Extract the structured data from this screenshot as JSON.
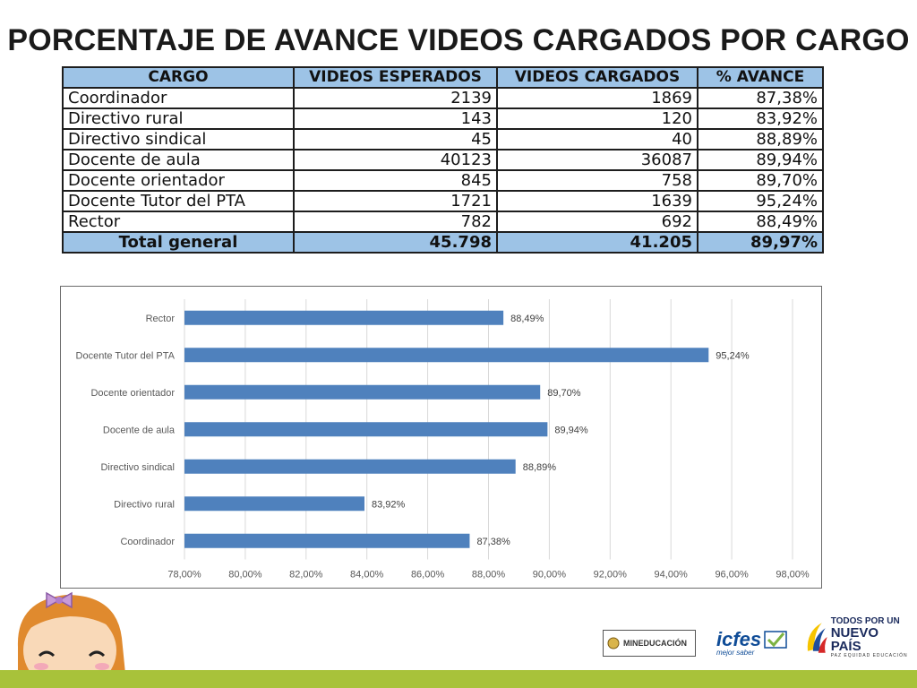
{
  "title": "PORCENTAJE DE AVANCE VIDEOS CARGADOS POR CARGO",
  "table": {
    "headers": [
      "CARGO",
      "VIDEOS ESPERADOS",
      "VIDEOS CARGADOS",
      "% AVANCE"
    ],
    "rows": [
      [
        "Coordinador",
        "2139",
        "1869",
        "87,38%"
      ],
      [
        "Directivo rural",
        "143",
        "120",
        "83,92%"
      ],
      [
        "Directivo sindical",
        "45",
        "40",
        "88,89%"
      ],
      [
        "Docente de aula",
        "40123",
        "36087",
        "89,94%"
      ],
      [
        "Docente orientador",
        "845",
        "758",
        "89,70%"
      ],
      [
        "Docente Tutor del PTA",
        "1721",
        "1639",
        "95,24%"
      ],
      [
        "Rector",
        "782",
        "692",
        "88,49%"
      ]
    ],
    "total": [
      "Total general",
      "45.798",
      "41.205",
      "89,97%"
    ]
  },
  "chart_data": {
    "type": "bar",
    "orientation": "horizontal",
    "categories": [
      "Rector",
      "Docente Tutor del PTA",
      "Docente orientador",
      "Docente de aula",
      "Directivo sindical",
      "Directivo rural",
      "Coordinador"
    ],
    "values": [
      88.49,
      95.24,
      89.7,
      89.94,
      88.89,
      83.92,
      87.38
    ],
    "data_labels": [
      "88,49%",
      "95,24%",
      "89,70%",
      "89,94%",
      "88,89%",
      "83,92%",
      "87,38%"
    ],
    "xlim": [
      78,
      98
    ],
    "xticks": [
      "78,00%",
      "80,00%",
      "82,00%",
      "84,00%",
      "86,00%",
      "88,00%",
      "90,00%",
      "92,00%",
      "94,00%",
      "96,00%",
      "98,00%"
    ],
    "grid": true,
    "bar_color": "#4f81bd"
  },
  "logos": {
    "men": "MINEDUCACIÓN",
    "icfes": "icfes",
    "icfes_sub": "mejor saber",
    "pais_top": "TODOS POR UN",
    "pais_main": "NUEVO PAÍS",
    "pais_sub": "PAZ EQUIDAD EDUCACIÓN"
  }
}
